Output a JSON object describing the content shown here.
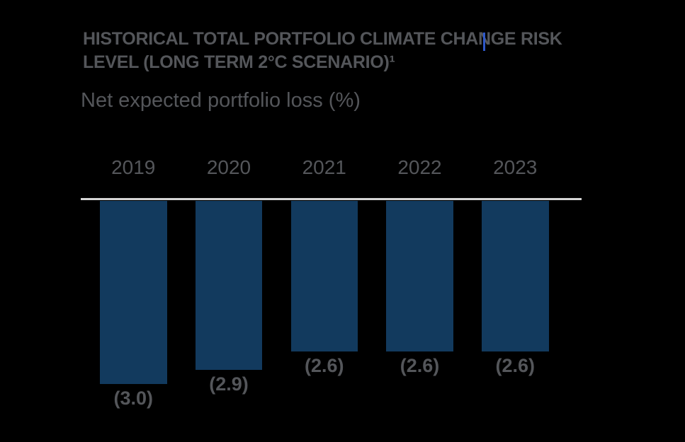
{
  "title": {
    "line1": "HISTORICAL TOTAL PORTFOLIO CLIMATE CHANGE RISK",
    "line2": "LEVEL (LONG TERM 2°C SCENARIO)¹"
  },
  "subtitle": "Net expected portfolio loss (%)",
  "colors": {
    "background": "#000000",
    "bar": "#123A5E",
    "text": "#54565A",
    "baseline": "#D5D5D5",
    "text_cursor": "#2E58C9"
  },
  "chart_data": {
    "type": "bar",
    "orientation": "vertical-downward",
    "title": "HISTORICAL TOTAL PORTFOLIO CLIMATE CHANGE RISK LEVEL (LONG TERM 2°C SCENARIO)¹",
    "ylabel": "Net expected portfolio loss (%)",
    "categories": [
      "2019",
      "2020",
      "2021",
      "2022",
      "2023"
    ],
    "values": [
      -3.0,
      -2.9,
      -2.6,
      -2.6,
      -2.6
    ],
    "value_labels": [
      "(3.0)",
      "(2.9)",
      "(2.6)",
      "(2.6)",
      "(2.6)"
    ],
    "negative_notation": "parentheses",
    "legend": false,
    "grid": false,
    "baseline_position": "top"
  }
}
